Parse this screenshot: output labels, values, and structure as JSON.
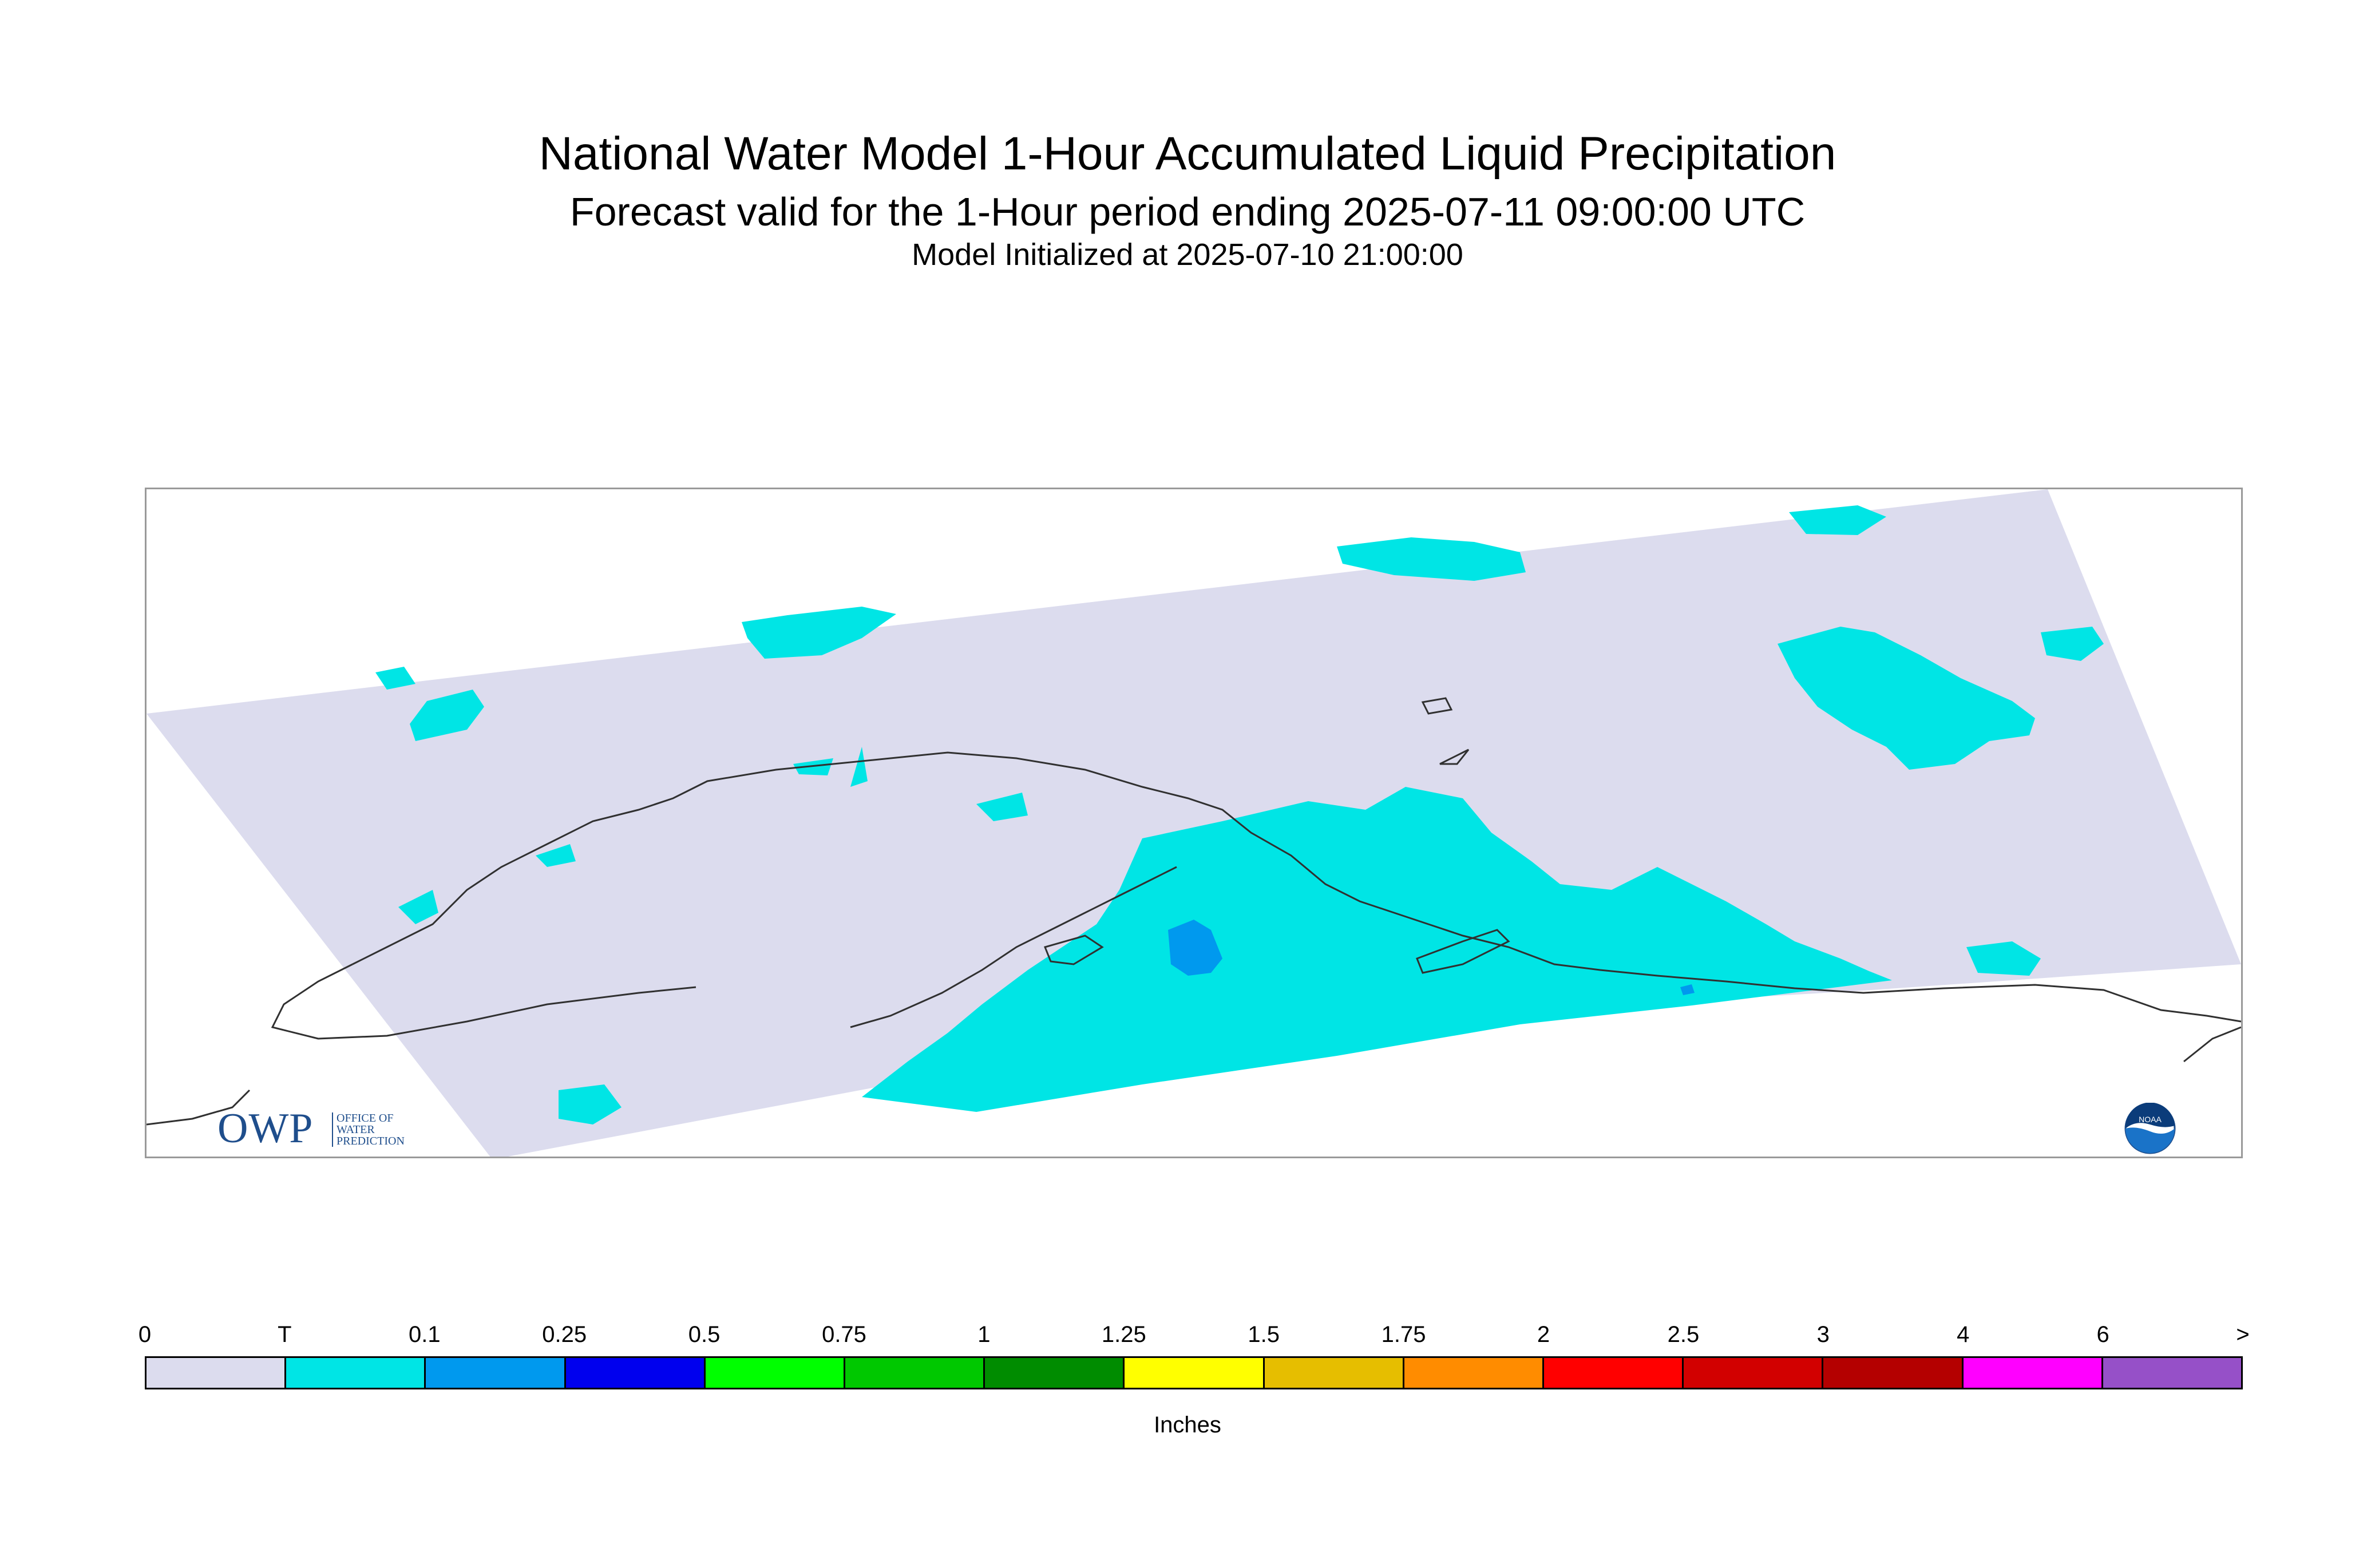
{
  "title": "National Water Model 1-Hour Accumulated Liquid Precipitation",
  "subtitle": "Forecast valid for the 1-Hour period ending 2025-07-11 09:00:00 UTC",
  "init_line": "Model Initialized at 2025-07-10 21:00:00",
  "logo": {
    "letters": "OWP",
    "line1": "OFFICE OF",
    "line2": "WATER",
    "line3": "PREDICTION",
    "emblem_text": "NOAA"
  },
  "colors": {
    "domain": "#dcdcee",
    "trace": "#00e5e5",
    "light_blue": "#0099ee",
    "coast": "#303030"
  },
  "legend": {
    "units": "Inches",
    "labels": [
      "0",
      "T",
      "0.1",
      "0.25",
      "0.5",
      "0.75",
      "1",
      "1.25",
      "1.5",
      "1.75",
      "2",
      "2.5",
      "3",
      "4",
      "6",
      ">"
    ],
    "colors": [
      "#dcdcee",
      "#00e5e5",
      "#0099ee",
      "#0000ee",
      "#00ff00",
      "#00c800",
      "#008c00",
      "#ffff00",
      "#e6be00",
      "#ff8c00",
      "#ff0000",
      "#d20000",
      "#b40000",
      "#ff00ff",
      "#9650c8"
    ]
  }
}
